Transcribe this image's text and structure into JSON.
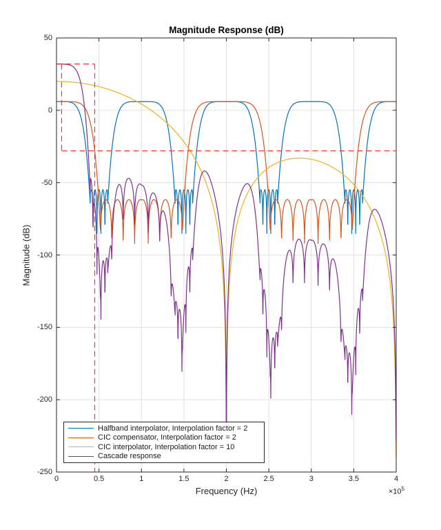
{
  "chart_data": {
    "type": "line",
    "title": "Magnitude Response (dB)",
    "xlabel": "Frequency (Hz)",
    "ylabel": "Magnitude (dB)",
    "x_multiplier": {
      "base": "×10",
      "exp": "5"
    },
    "xlim": [
      0,
      400000
    ],
    "ylim": [
      -250,
      50
    ],
    "xticks": [
      0,
      50000,
      100000,
      150000,
      200000,
      250000,
      300000,
      350000,
      400000
    ],
    "xtick_labels": [
      "0",
      "0.5",
      "1",
      "1.5",
      "2",
      "2.5",
      "3",
      "3.5",
      "4"
    ],
    "yticks": [
      50,
      0,
      -50,
      -100,
      -150,
      -200,
      -250
    ],
    "ytick_labels": [
      "50",
      "0",
      "-50",
      "-100",
      "-150",
      "-200",
      "-250"
    ],
    "grid": true,
    "legend_position": "southwest",
    "style": {
      "grid_color": "#e0e0e0",
      "axis_color": "#262626",
      "background": "#ffffff",
      "curve_width": 1.2,
      "mask_dash": "8 5"
    },
    "series": [
      {
        "id": "halfband",
        "name": "Halfband interpolator, Interpolation factor = 2",
        "color": "#0072BD",
        "passband_gain_db": 6,
        "passband_centers_hz": [
          0,
          100000,
          200000,
          300000,
          400000
        ],
        "stopband_centers_hz": [
          50000,
          150000,
          250000,
          350000
        ],
        "stopband_sidelobe_db": -55,
        "key_points_db": [
          [
            0,
            6
          ],
          [
            100000,
            6
          ],
          [
            200000,
            6
          ],
          [
            300000,
            6
          ],
          [
            400000,
            6
          ],
          [
            50000,
            -55
          ],
          [
            150000,
            -55
          ],
          [
            250000,
            -55
          ],
          [
            350000,
            -55
          ]
        ],
        "model": {
          "kind": "lobe_comb",
          "period_hz": 100000,
          "half_span_hz": 50000,
          "peak_db": 6,
          "knee": {
            "drop_db": 34,
            "t_ref": 0.7,
            "power": 5.76,
            "floor_db": -160
          },
          "ripple": {
            "peak_db": -55,
            "first_null_t": 0.86,
            "null_spacing_t": 0.0933,
            "start_t": 0.795,
            "notch_eps_db": -38
          }
        }
      },
      {
        "id": "cic-compensator",
        "name": "CIC compensator, Interpolation factor = 2",
        "color": "#D95319",
        "passband_gain_db": 6,
        "passband_centers_hz": [
          0,
          200000,
          400000
        ],
        "stopband_sidelobe_db": -62,
        "key_points_db": [
          [
            0,
            6
          ],
          [
            200000,
            6
          ],
          [
            400000,
            6
          ],
          [
            100000,
            -62
          ],
          [
            300000,
            -62
          ]
        ],
        "model": {
          "kind": "lobe_comb",
          "period_hz": 200000,
          "half_span_hz": 100000,
          "peak_db": 6,
          "knee": {
            "drop_db": 34,
            "t_ref": 0.45,
            "power": 6.9,
            "floor_db": -160
          },
          "ripple": {
            "peak_db": -62,
            "first_null_t": 0.515,
            "null_spacing_t": 0.135,
            "start_t": 0.49,
            "notch_eps_db": -30
          }
        }
      },
      {
        "id": "cic-interpolator",
        "name": "CIC interpolator, Interpolation factor = 10",
        "color": "#EDB120",
        "dc_gain_db": 20,
        "nulls_hz": [
          200000,
          400000
        ],
        "key_points_db": [
          [
            0,
            20
          ],
          [
            50000,
            16
          ],
          [
            100000,
            4.3
          ],
          [
            155000,
            -28
          ],
          [
            200000,
            -220
          ],
          [
            286000,
            -33
          ],
          [
            400000,
            -220
          ]
        ],
        "model": {
          "kind": "sinc_pow",
          "dc_gain_db": 20,
          "null_spacing_hz": 200000,
          "order": 4,
          "floor_db": -240
        }
      },
      {
        "id": "cascade",
        "name": "Cascade response",
        "color": "#7E2F8E",
        "dc_gain_db": 32,
        "key_points_db": [
          [
            0,
            32
          ],
          [
            45000,
            -28
          ],
          [
            75000,
            -49
          ],
          [
            170000,
            -45
          ],
          [
            200000,
            -218
          ],
          [
            220000,
            -54
          ],
          [
            375000,
            -70
          ],
          [
            400000,
            -250
          ]
        ],
        "model": {
          "kind": "sum_db",
          "of": [
            0,
            1,
            2
          ]
        }
      }
    ],
    "mask": {
      "name": "design specification mask",
      "color": "#f3392e",
      "style": "dashed",
      "passband_edge_hz": 45000,
      "passband_upper_db": 32,
      "stopband_atten_db": -28,
      "segments": [
        {
          "f_hz": [
            0,
            45000
          ],
          "db": [
            32,
            32
          ]
        },
        {
          "f_hz": [
            6000,
            6000
          ],
          "db": [
            32,
            -28
          ]
        },
        {
          "f_hz": [
            6000,
            400000
          ],
          "db": [
            -28,
            -28
          ]
        },
        {
          "f_hz": [
            45000,
            45000
          ],
          "db": [
            32,
            -250
          ]
        }
      ]
    }
  }
}
